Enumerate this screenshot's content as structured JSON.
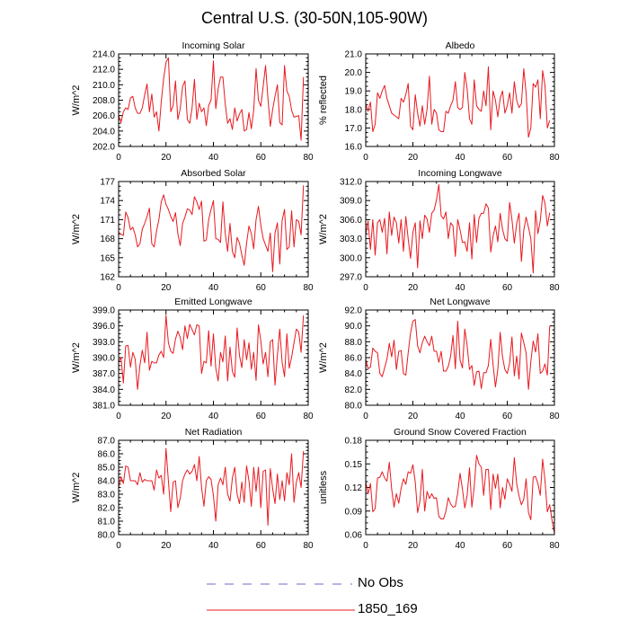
{
  "figure": {
    "title": "Central U.S. (30-50N,105-90W)"
  },
  "legend": {
    "items": [
      {
        "label": "No Obs",
        "color": "#6b6bc8",
        "style": "dashed"
      },
      {
        "label": "1850_169",
        "color": "#e8191f",
        "style": "solid"
      }
    ]
  },
  "chart_data": [
    {
      "type": "line",
      "title": "Incoming Solar",
      "xlabel": "",
      "ylabel": "W/m^2",
      "xlim": [
        0,
        80
      ],
      "ylim": [
        202.0,
        214.0
      ],
      "xticks": [
        0,
        20,
        40,
        60,
        80
      ],
      "xtick_labels": [
        "0",
        "20",
        "40",
        "60",
        "80"
      ],
      "yticks": [
        202,
        204,
        206,
        208,
        210,
        212,
        214
      ],
      "ytick_labels": [
        "202.0",
        "204.0",
        "206.0",
        "208.0",
        "210.0",
        "212.0",
        "214.0"
      ],
      "series": [
        {
          "name": "1850_169",
          "color": "#e8191f",
          "values": [
            206.0,
            205.1,
            206.5,
            207.0,
            206.8,
            208.3,
            208.5,
            207.0,
            206.3,
            206.3,
            207.0,
            208.7,
            210.1,
            206.5,
            208.8,
            205.8,
            206.5,
            204.0,
            207.8,
            210.8,
            212.9,
            213.5,
            206.5,
            207.3,
            210.5,
            205.5,
            206.9,
            209.8,
            210.5,
            205.5,
            205.0,
            207.0,
            210.7,
            205.5,
            207.6,
            206.5,
            207.0,
            204.7,
            207.3,
            208.0,
            213.1,
            206.9,
            209.5,
            211.0,
            211.0,
            207.5,
            205.0,
            205.6,
            204.2,
            207.0,
            205.3,
            206.2,
            206.8,
            204.0,
            204.2,
            206.4,
            204.3,
            206.7,
            212.1,
            208.0,
            207.2,
            209.8,
            212.5,
            208.3,
            204.6,
            206.8,
            208.5,
            210.0,
            205.1,
            204.8,
            212.5,
            209.2,
            208.5,
            206.7,
            205.8,
            205.9,
            206.0,
            202.8,
            211.0
          ]
        }
      ]
    },
    {
      "type": "line",
      "title": "Albedo",
      "xlabel": "",
      "ylabel": "% reflected",
      "xlim": [
        0,
        80
      ],
      "ylim": [
        16.0,
        21.0
      ],
      "xticks": [
        0,
        20,
        40,
        60,
        80
      ],
      "xtick_labels": [
        "0",
        "20",
        "40",
        "60",
        "80"
      ],
      "yticks": [
        16,
        17,
        18,
        19,
        20,
        21
      ],
      "ytick_labels": [
        "16.0",
        "17.0",
        "18.0",
        "19.0",
        "20.0",
        "21.0"
      ],
      "series": [
        {
          "name": "1850_169",
          "color": "#e8191f",
          "values": [
            18.3,
            17.9,
            18.4,
            16.8,
            17.2,
            18.9,
            18.6,
            19.0,
            19.3,
            18.6,
            18.2,
            17.8,
            17.7,
            17.6,
            17.5,
            18.6,
            18.4,
            18.8,
            19.4,
            17.1,
            16.9,
            18.8,
            17.8,
            17.1,
            18.2,
            17.2,
            18.0,
            19.8,
            17.2,
            18.0,
            17.8,
            16.9,
            16.8,
            16.8,
            17.9,
            17.8,
            18.2,
            18.5,
            19.5,
            18.1,
            18.0,
            18.1,
            20.0,
            19.1,
            17.5,
            17.2,
            19.6,
            18.2,
            18.0,
            17.9,
            19.0,
            18.2,
            20.3,
            16.9,
            19.0,
            18.5,
            17.6,
            18.6,
            19.0,
            17.8,
            18.2,
            18.9,
            17.8,
            19.5,
            18.5,
            18.1,
            18.3,
            20.2,
            18.9,
            16.5,
            17.0,
            19.4,
            19.2,
            19.6,
            17.5,
            20.1,
            19.3,
            17.0,
            17.4
          ]
        }
      ]
    },
    {
      "type": "line",
      "title": "Absorbed Solar",
      "xlabel": "",
      "ylabel": "W/m^2",
      "xlim": [
        0,
        80
      ],
      "ylim": [
        162,
        177
      ],
      "xticks": [
        0,
        20,
        40,
        60,
        80
      ],
      "xtick_labels": [
        "0",
        "20",
        "40",
        "60",
        "80"
      ],
      "yticks": [
        162,
        165,
        168,
        171,
        174,
        177
      ],
      "ytick_labels": [
        "162",
        "165",
        "168",
        "171",
        "174",
        "177"
      ],
      "series": [
        {
          "name": "1850_169",
          "color": "#e8191f",
          "values": [
            169.0,
            168.7,
            168.5,
            172.2,
            171.3,
            169.4,
            169.8,
            168.6,
            166.7,
            167.2,
            169.5,
            170.4,
            171.5,
            172.8,
            167.2,
            166.7,
            169.2,
            171.0,
            173.8,
            174.9,
            173.4,
            172.6,
            171.5,
            170.7,
            172.1,
            168.8,
            166.9,
            170.4,
            171.4,
            172.7,
            172.5,
            171.8,
            174.6,
            173.8,
            172.6,
            173.9,
            167.6,
            167.8,
            171.0,
            172.6,
            174.0,
            168.0,
            167.9,
            167.4,
            173.8,
            168.8,
            166.0,
            170.4,
            166.0,
            165.0,
            168.2,
            167.3,
            165.4,
            163.8,
            167.3,
            170.0,
            168.8,
            166.4,
            171.0,
            173.1,
            170.1,
            168.0,
            167.0,
            166.0,
            168.9,
            162.8,
            168.9,
            170.5,
            164.0,
            170.9,
            172.6,
            166.3,
            166.7,
            172.4,
            166.7,
            171.0,
            170.7,
            168.6,
            176.4
          ]
        }
      ]
    },
    {
      "type": "line",
      "title": "Incoming Longwave",
      "xlabel": "",
      "ylabel": "W/m^2",
      "xlim": [
        0,
        80
      ],
      "ylim": [
        297.0,
        312.0
      ],
      "xticks": [
        0,
        20,
        40,
        60,
        80
      ],
      "xtick_labels": [
        "0",
        "20",
        "40",
        "60",
        "80"
      ],
      "yticks": [
        297,
        300,
        303,
        306,
        309,
        312
      ],
      "ytick_labels": [
        "297.0",
        "300.0",
        "303.0",
        "306.0",
        "309.0",
        "312.0"
      ],
      "series": [
        {
          "name": "1850_169",
          "color": "#e8191f",
          "values": [
            303.6,
            305.8,
            301.3,
            306.0,
            300.4,
            305.5,
            306.0,
            304.0,
            306.2,
            300.6,
            307.2,
            303.5,
            306.4,
            305.5,
            302.3,
            306.0,
            301.0,
            306.5,
            303.0,
            299.9,
            304.0,
            305.5,
            298.4,
            305.8,
            303.0,
            306.7,
            306.1,
            304.0,
            307.0,
            307.5,
            309.1,
            311.5,
            306.6,
            306.1,
            307.2,
            303.0,
            305.5,
            305.0,
            300.2,
            306.0,
            304.4,
            302.4,
            302.5,
            301.0,
            305.5,
            299.8,
            306.8,
            302.4,
            306.2,
            307.0,
            307.0,
            308.5,
            307.8,
            300.9,
            303.4,
            305.0,
            302.5,
            307.0,
            304.5,
            303.0,
            302.6,
            308.7,
            306.0,
            302.3,
            305.4,
            307.0,
            299.4,
            304.3,
            306.4,
            304.8,
            303.0,
            297.6,
            307.4,
            303.8,
            305.8,
            309.8,
            308.6,
            305.0,
            307.1
          ]
        }
      ]
    },
    {
      "type": "line",
      "title": "Emitted Longwave",
      "xlabel": "",
      "ylabel": "W/m^2",
      "xlim": [
        0,
        80
      ],
      "ylim": [
        381.0,
        399.0
      ],
      "xticks": [
        0,
        20,
        40,
        60,
        80
      ],
      "xtick_labels": [
        "0",
        "20",
        "40",
        "60",
        "80"
      ],
      "yticks": [
        381,
        384,
        387,
        390,
        393,
        396,
        399
      ],
      "ytick_labels": [
        "381.0",
        "384.0",
        "387.0",
        "390.0",
        "393.0",
        "396.0",
        "399.0"
      ],
      "series": [
        {
          "name": "1850_169",
          "color": "#e8191f",
          "values": [
            389.2,
            390.0,
            385.2,
            392.2,
            392.3,
            388.2,
            391.0,
            389.7,
            384.0,
            388.6,
            391.4,
            389.0,
            394.8,
            387.6,
            389.3,
            389.0,
            389.0,
            390.5,
            391.2,
            390.0,
            398.0,
            392.8,
            391.2,
            390.8,
            393.5,
            395.0,
            393.8,
            391.5,
            396.0,
            393.6,
            396.3,
            395.3,
            394.3,
            396.2,
            396.0,
            387.0,
            389.3,
            389.0,
            395.1,
            388.4,
            394.5,
            388.0,
            385.6,
            391.0,
            389.2,
            394.1,
            385.6,
            392.0,
            387.4,
            386.3,
            395.6,
            390.4,
            388.1,
            393.4,
            389.6,
            392.8,
            387.8,
            391.0,
            385.7,
            396.2,
            393.2,
            388.8,
            391.0,
            386.4,
            393.0,
            393.4,
            384.8,
            390.5,
            395.4,
            389.1,
            386.4,
            394.5,
            388.0,
            390.1,
            392.8,
            395.4,
            394.8,
            391.0,
            398.0
          ]
        }
      ]
    },
    {
      "type": "line",
      "title": "Net Longwave",
      "xlabel": "",
      "ylabel": "W/m^2",
      "xlim": [
        0,
        80
      ],
      "ylim": [
        80.0,
        92.0
      ],
      "xticks": [
        0,
        20,
        40,
        60,
        80
      ],
      "xtick_labels": [
        "0",
        "20",
        "40",
        "60",
        "80"
      ],
      "yticks": [
        80,
        82,
        84,
        86,
        88,
        90,
        92
      ],
      "ytick_labels": [
        "80.0",
        "82.0",
        "84.0",
        "86.0",
        "88.0",
        "90.0",
        "92.0"
      ],
      "series": [
        {
          "name": "1850_169",
          "color": "#e8191f",
          "values": [
            85.8,
            84.6,
            84.8,
            87.2,
            86.8,
            86.6,
            84.0,
            83.6,
            84.7,
            85.8,
            87.8,
            86.1,
            88.2,
            84.5,
            86.8,
            86.9,
            84.0,
            83.8,
            86.6,
            89.1,
            90.6,
            90.8,
            87.5,
            86.6,
            87.9,
            88.7,
            88.0,
            87.5,
            88.7,
            86.8,
            86.8,
            85.4,
            86.8,
            84.3,
            84.3,
            84.9,
            86.2,
            88.8,
            84.6,
            90.6,
            85.7,
            84.7,
            89.6,
            87.5,
            84.5,
            85.0,
            82.5,
            84.2,
            84.3,
            82.1,
            84.1,
            84.1,
            85.0,
            88.3,
            85.1,
            82.3,
            84.5,
            89.2,
            86.1,
            84.5,
            84.0,
            85.3,
            88.6,
            83.7,
            86.2,
            83.3,
            89.1,
            87.9,
            86.6,
            82.0,
            85.5,
            88.1,
            86.7,
            89.0,
            84.0,
            84.3,
            85.2,
            83.8,
            90.0
          ]
        }
      ]
    },
    {
      "type": "line",
      "title": "Net Radiation",
      "xlabel": "",
      "ylabel": "W/m^2",
      "xlim": [
        0,
        80
      ],
      "ylim": [
        80.0,
        87.0
      ],
      "xticks": [
        0,
        20,
        40,
        60,
        80
      ],
      "xtick_labels": [
        "0",
        "20",
        "40",
        "60",
        "80"
      ],
      "yticks": [
        80,
        81,
        82,
        83,
        84,
        85,
        86,
        87
      ],
      "ytick_labels": [
        "80.0",
        "81.0",
        "82.0",
        "83.0",
        "84.0",
        "85.0",
        "86.0",
        "87.0"
      ],
      "series": [
        {
          "name": "1850_169",
          "color": "#e8191f",
          "values": [
            83.5,
            84.3,
            83.8,
            85.1,
            85.0,
            84.0,
            84.0,
            84.0,
            83.7,
            84.6,
            83.9,
            84.1,
            84.0,
            84.0,
            84.0,
            83.3,
            84.8,
            84.2,
            84.4,
            83.0,
            86.4,
            84.0,
            81.7,
            83.9,
            84.0,
            82.0,
            82.7,
            84.0,
            84.5,
            84.8,
            84.5,
            84.7,
            85.2,
            84.0,
            85.8,
            83.5,
            82.1,
            84.0,
            84.3,
            84.1,
            82.9,
            81.0,
            83.7,
            84.2,
            83.7,
            85.0,
            83.0,
            82.5,
            84.2,
            85.0,
            83.0,
            82.3,
            83.9,
            82.4,
            85.1,
            84.0,
            82.1,
            85.0,
            83.2,
            85.0,
            82.0,
            84.7,
            84.8,
            80.7,
            84.9,
            83.4,
            82.3,
            84.5,
            82.6,
            84.0,
            82.5,
            84.6,
            83.7,
            86.0,
            82.4,
            83.9,
            84.6,
            83.5,
            86.2
          ]
        }
      ]
    },
    {
      "type": "line",
      "title": "Ground Snow Covered Fraction",
      "xlabel": "",
      "ylabel": "unitless",
      "xlim": [
        0,
        80
      ],
      "ylim": [
        0.06,
        0.18
      ],
      "xticks": [
        0,
        20,
        40,
        60,
        80
      ],
      "xtick_labels": [
        "0",
        "20",
        "40",
        "60",
        "80"
      ],
      "yticks": [
        0.06,
        0.09,
        0.12,
        0.15,
        0.18
      ],
      "ytick_labels": [
        "0.06",
        "0.09",
        "0.12",
        "0.15",
        "0.18"
      ],
      "series": [
        {
          "name": "1850_169",
          "color": "#e8191f",
          "values": [
            0.127,
            0.112,
            0.125,
            0.089,
            0.093,
            0.132,
            0.133,
            0.14,
            0.132,
            0.128,
            0.152,
            0.118,
            0.095,
            0.112,
            0.1,
            0.119,
            0.131,
            0.124,
            0.14,
            0.138,
            0.149,
            0.127,
            0.088,
            0.103,
            0.143,
            0.09,
            0.115,
            0.106,
            0.112,
            0.106,
            0.107,
            0.083,
            0.08,
            0.08,
            0.09,
            0.107,
            0.099,
            0.095,
            0.096,
            0.113,
            0.138,
            0.118,
            0.094,
            0.11,
            0.145,
            0.095,
            0.121,
            0.161,
            0.15,
            0.146,
            0.11,
            0.143,
            0.143,
            0.092,
            0.137,
            0.119,
            0.137,
            0.094,
            0.12,
            0.105,
            0.131,
            0.124,
            0.115,
            0.158,
            0.125,
            0.109,
            0.098,
            0.105,
            0.131,
            0.088,
            0.079,
            0.133,
            0.134,
            0.125,
            0.11,
            0.156,
            0.129,
            0.089,
            0.098,
            0.078,
            0.062
          ]
        }
      ]
    }
  ]
}
